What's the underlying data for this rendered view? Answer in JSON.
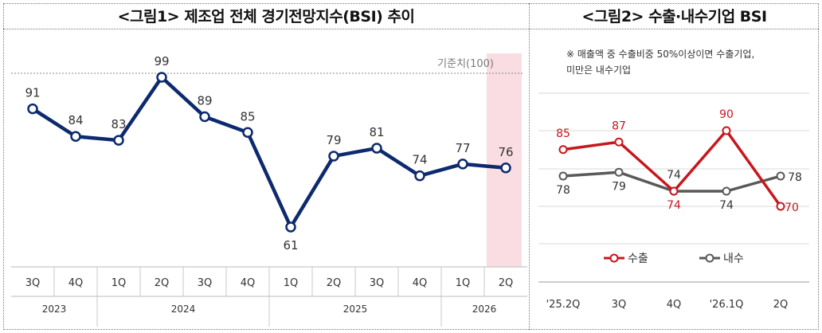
{
  "titles": {
    "left": "<그림1> 제조업 전체 경기전망지수(BSI) 추이",
    "right": "<그림2> 수출·내수기업 BSI"
  },
  "chart_data": [
    {
      "type": "line",
      "title": "<그림1> 제조업 전체 경기전망지수(BSI) 추이",
      "categories": [
        "3Q",
        "4Q",
        "1Q",
        "2Q",
        "3Q",
        "4Q",
        "1Q",
        "2Q",
        "3Q",
        "4Q",
        "1Q",
        "2Q"
      ],
      "years": [
        {
          "label": "2023",
          "span": 2
        },
        {
          "label": "2024",
          "span": 4
        },
        {
          "label": "2025",
          "span": 4
        },
        {
          "label": "2026",
          "span": 2
        }
      ],
      "series": [
        {
          "values": [
            91,
            84,
            83,
            99,
            89,
            85,
            61,
            79,
            81,
            74,
            77,
            76
          ],
          "color": "#0d2a6e"
        }
      ],
      "reference_line": {
        "value": 100,
        "label": "기준치(100)"
      },
      "highlight_last": true,
      "highlight_color": "#f9dde3",
      "grid": false
    },
    {
      "type": "line",
      "title": "<그림2> 수출·내수기업 BSI",
      "note": "※ 매출액 중 수출비중 50%이상이면 수출기업,\n미만은 내수기업",
      "categories": [
        "'25.2Q",
        "3Q",
        "4Q",
        "'26.1Q",
        "2Q"
      ],
      "series": [
        {
          "name": "수출",
          "values": [
            85,
            87,
            74,
            90,
            70
          ],
          "color": "#c8161d"
        },
        {
          "name": "내수",
          "values": [
            78,
            79,
            74,
            74,
            78
          ],
          "color": "#595959"
        }
      ],
      "legend_position": "bottom",
      "grid": true
    }
  ]
}
